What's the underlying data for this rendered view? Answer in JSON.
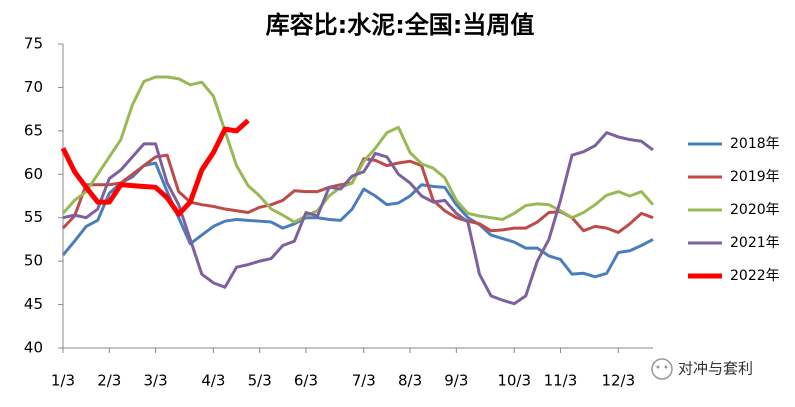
{
  "chart_data": {
    "type": "line",
    "title": "库容比:水泥:全国:当周值",
    "categories": [
      "1/3",
      null,
      null,
      null,
      "2/3",
      null,
      null,
      null,
      "3/3",
      null,
      null,
      null,
      null,
      "4/3",
      null,
      null,
      null,
      "5/3",
      null,
      null,
      null,
      "6/3",
      null,
      null,
      null,
      null,
      "7/3",
      null,
      null,
      null,
      "8/3",
      null,
      null,
      null,
      "9/3",
      null,
      null,
      null,
      null,
      "10/3",
      null,
      null,
      null,
      "11/3",
      null,
      null,
      null,
      null,
      "12/3",
      null,
      null,
      null
    ],
    "series": [
      {
        "name": "2018年",
        "color": "#4a7ebb",
        "width": 3,
        "values": [
          50.7,
          52.3,
          54,
          54.7,
          57.8,
          59,
          59.7,
          61,
          61.3,
          58,
          55,
          52,
          53,
          54,
          54.6,
          54.8,
          54.7,
          54.6,
          54.5,
          53.8,
          54.3,
          55,
          55,
          54.8,
          54.7,
          56,
          58.3,
          57.5,
          56.5,
          56.7,
          57.5,
          58.8,
          58.6,
          58.5,
          56.5,
          55,
          54.2,
          53,
          52.6,
          52.2,
          51.5,
          51.5,
          50.6,
          50.2,
          48.5,
          48.6,
          48.2,
          48.6,
          51,
          51.2,
          51.8,
          52.5
        ]
      },
      {
        "name": "2019年",
        "color": "#be4b48",
        "width": 3,
        "values": [
          53.8,
          55.2,
          58.8,
          58.8,
          58.8,
          59,
          60,
          61,
          62,
          62.2,
          58,
          56.8,
          56.5,
          56.3,
          56,
          55.8,
          55.6,
          56.2,
          56.5,
          57,
          58.1,
          58,
          58,
          58.5,
          58.8,
          59,
          61.8,
          61.6,
          61,
          61.3,
          61.5,
          61,
          57,
          55.8,
          55,
          54.6,
          54.3,
          53.5,
          53.6,
          53.8,
          53.8,
          54.5,
          55.6,
          55.7,
          55,
          53.5,
          54,
          53.8,
          53.3,
          54.3,
          55.5,
          55
        ]
      },
      {
        "name": "2020年",
        "color": "#98b954",
        "width": 3,
        "values": [
          55.5,
          57,
          58,
          60,
          62,
          64,
          68,
          70.7,
          71.2,
          71.2,
          71,
          70.3,
          70.6,
          69,
          65,
          61,
          58.7,
          57.5,
          56,
          55.3,
          54.5,
          55.2,
          55.8,
          57.5,
          58.5,
          59,
          61.5,
          63,
          64.8,
          65.4,
          62.5,
          61.2,
          60.7,
          59.6,
          57,
          55.5,
          55.2,
          55,
          54.8,
          55.5,
          56.4,
          56.6,
          56.5,
          55.8,
          55,
          55.6,
          56.5,
          57.6,
          58,
          57.5,
          58,
          56.5
        ]
      },
      {
        "name": "2021年",
        "color": "#7d60a0",
        "width": 3,
        "values": [
          55,
          55.3,
          55,
          56,
          59.5,
          60.5,
          62,
          63.5,
          63.5,
          59,
          56.5,
          52.5,
          48.5,
          47.5,
          47,
          49.3,
          49.6,
          50,
          50.3,
          51.8,
          52.3,
          55.6,
          55.2,
          58.5,
          58.3,
          59.8,
          60.3,
          62.4,
          62,
          60,
          59,
          57.5,
          56.8,
          57,
          55.5,
          54.5,
          48.5,
          46,
          45.5,
          45.1,
          46,
          50,
          52.5,
          57,
          62.2,
          62.6,
          63.3,
          64.8,
          64.3,
          64,
          63.8,
          62.8
        ]
      },
      {
        "name": "2022年",
        "color": "#ff0000",
        "width": 5,
        "values": [
          63,
          60.3,
          58.5,
          56.8,
          56.8,
          58.8,
          58.7,
          58.6,
          58.5,
          57.3,
          55.4,
          56.8,
          60.5,
          62.5,
          65.2,
          65,
          66.2,
          null,
          null,
          null,
          null,
          null,
          null,
          null,
          null,
          null,
          null,
          null,
          null,
          null,
          null,
          null,
          null,
          null,
          null,
          null,
          null,
          null,
          null,
          null,
          null,
          null,
          null,
          null,
          null,
          null,
          null,
          null,
          null,
          null,
          null,
          null
        ]
      }
    ],
    "ylim": [
      40,
      75
    ],
    "yticks": [
      40,
      45,
      50,
      55,
      60,
      65,
      70,
      75
    ],
    "grid": false,
    "legend": "right"
  },
  "watermark": "对冲与套利"
}
